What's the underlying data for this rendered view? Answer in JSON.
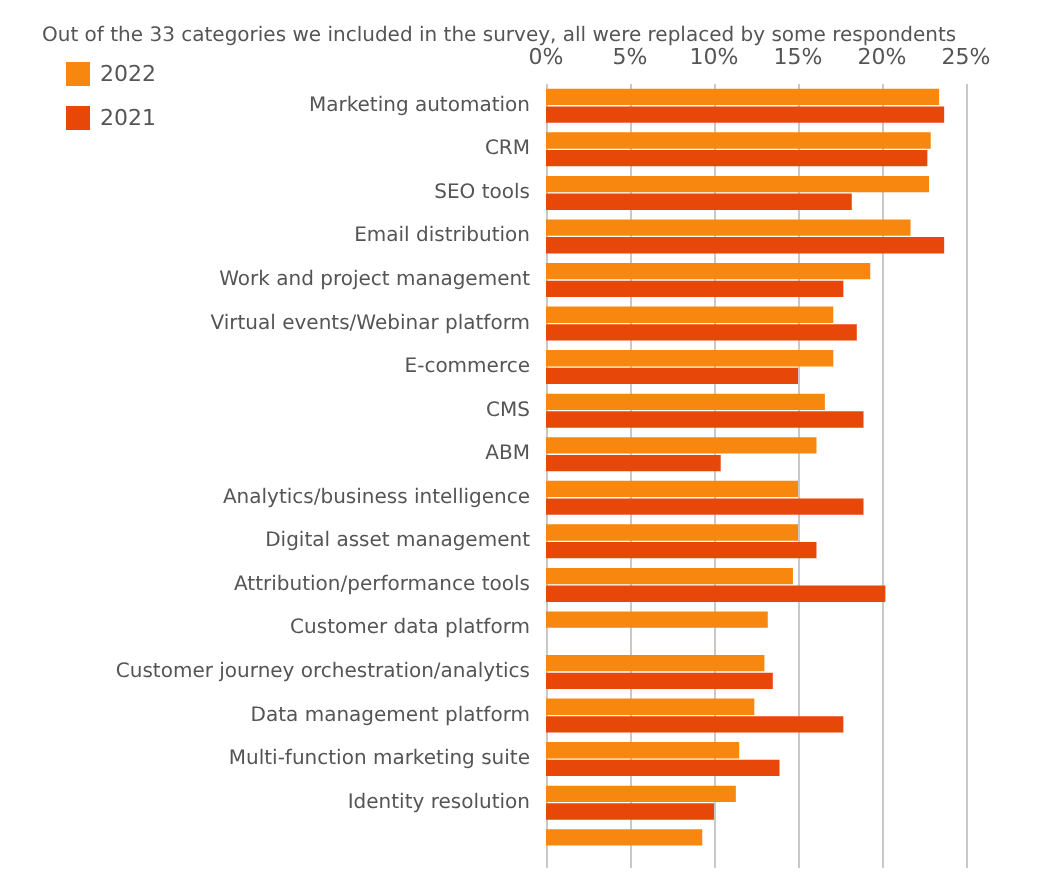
{
  "chart_data": {
    "type": "bar",
    "orientation": "horizontal",
    "title": "Out of the 33 categories we included in the survey, all were replaced by some respondents",
    "categories": [
      "Marketing automation",
      "CRM",
      "SEO tools",
      "Email distribution",
      "Work and project management",
      "Virtual events/Webinar platform",
      "E-commerce",
      "CMS",
      "ABM",
      "Analytics/business intelligence",
      "Digital asset management",
      "Attribution/performance tools",
      "Customer data platform",
      "Customer journey orchestration/analytics",
      "Data management platform",
      "Multi-function marketing suite",
      "Identity resolution",
      null
    ],
    "series": [
      {
        "name": "2022",
        "color": "#f7870f",
        "values": [
          23.4,
          22.9,
          22.8,
          21.7,
          19.3,
          17.1,
          17.1,
          16.6,
          16.1,
          15.0,
          15.0,
          14.7,
          13.2,
          13.0,
          12.4,
          11.5,
          11.3,
          9.3
        ]
      },
      {
        "name": "2021",
        "color": "#e8470a",
        "values": [
          23.7,
          22.7,
          18.2,
          23.7,
          17.7,
          18.5,
          15.0,
          18.9,
          10.4,
          18.9,
          16.1,
          20.2,
          null,
          13.5,
          17.7,
          13.9,
          10.0,
          null
        ]
      }
    ],
    "xlim": [
      0,
      25
    ],
    "xticks": [
      {
        "value": 0,
        "label": "0%"
      },
      {
        "value": 5,
        "label": "5%"
      },
      {
        "value": 10,
        "label": "10%"
      },
      {
        "value": 15,
        "label": "15%"
      },
      {
        "value": 20,
        "label": "20%"
      },
      {
        "value": 25,
        "label": "25%"
      }
    ],
    "grid": "x",
    "legend": "top left"
  }
}
